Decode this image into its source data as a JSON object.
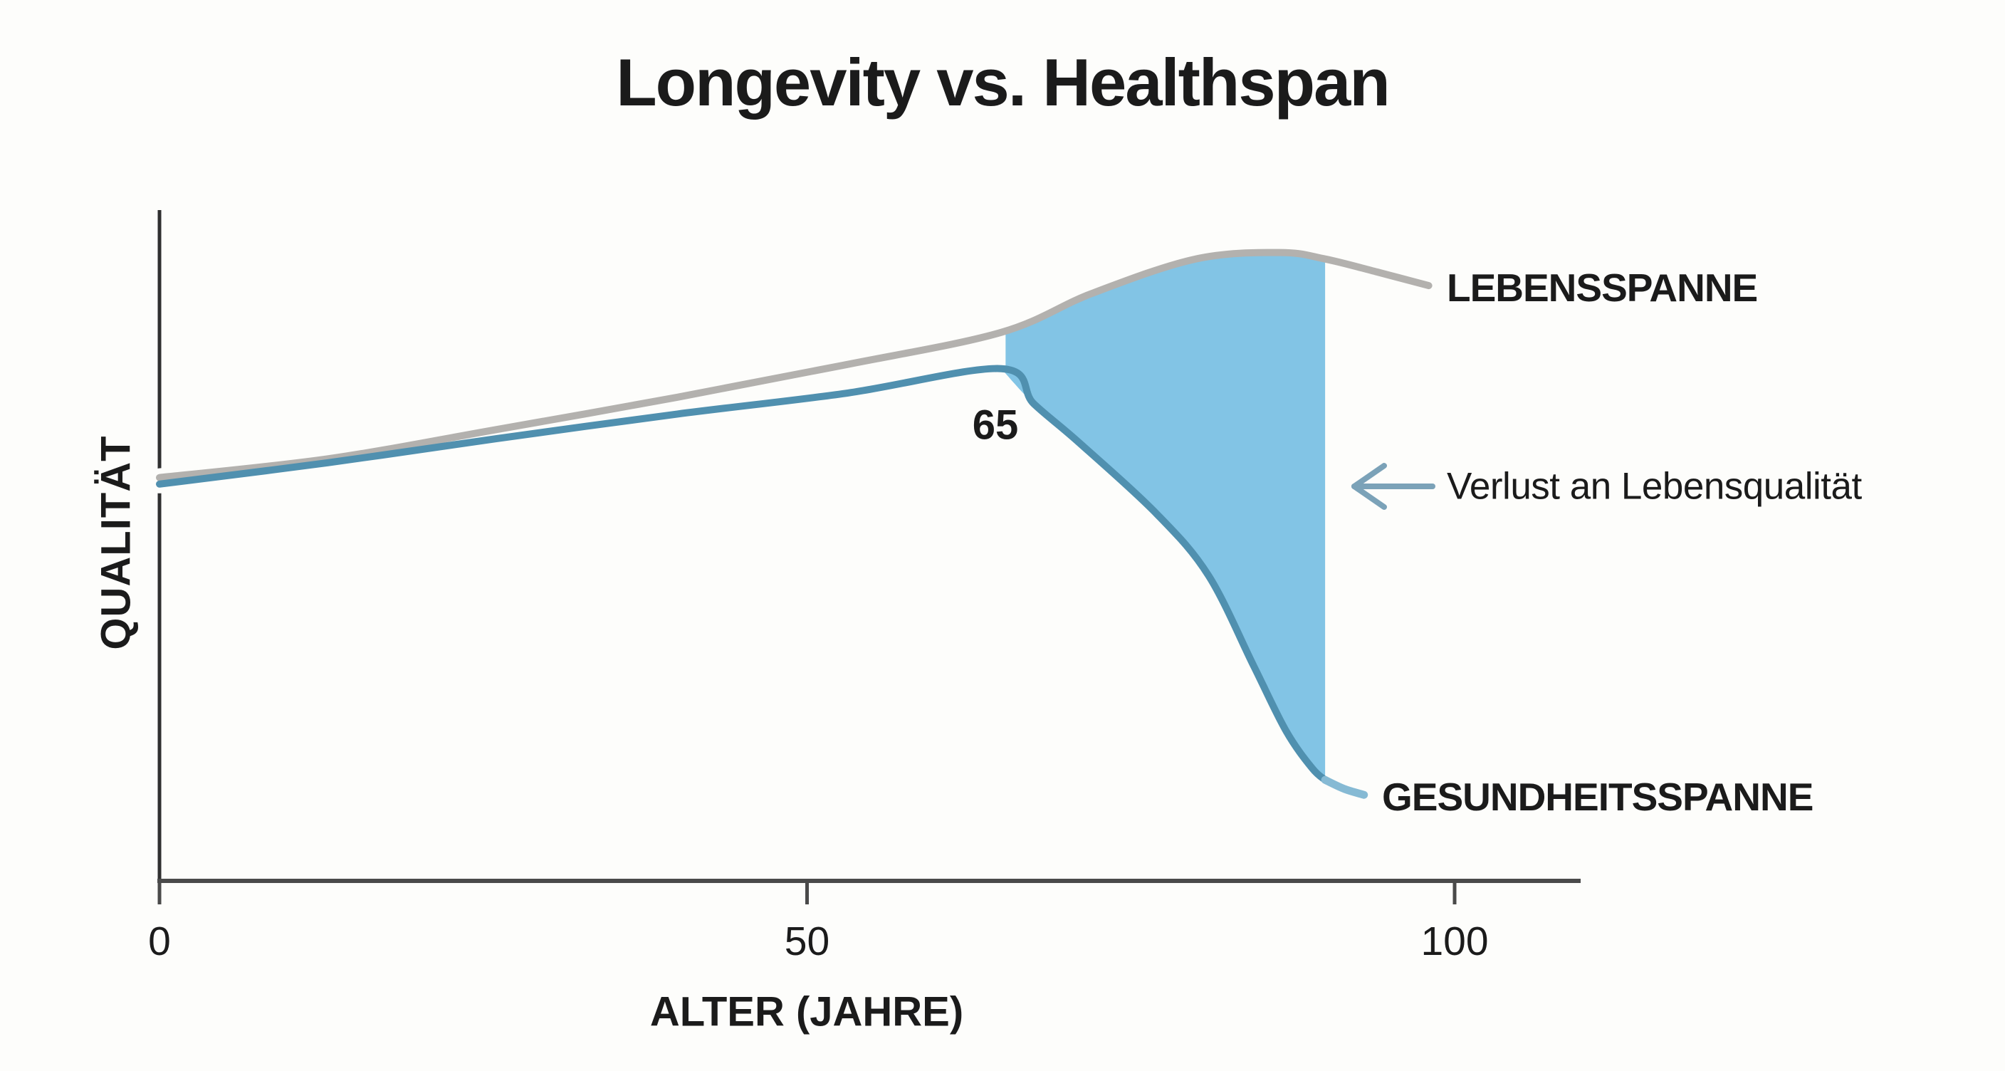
{
  "chart_data": {
    "type": "area",
    "title": "Longevity vs. Healthspan",
    "xlabel": "ALTER (JAHRE)",
    "ylabel": "QUALITÄT",
    "x_ticks": [
      0,
      50,
      100
    ],
    "x_range": [
      0,
      110
    ],
    "y_axis_numeric": false,
    "grid": false,
    "legend_position": "inline-right",
    "series": [
      {
        "name": "LEBENSSPANNE",
        "color": "#b3b1ae",
        "points": [
          [
            0,
            62.6
          ],
          [
            13,
            65.5
          ],
          [
            26,
            70
          ],
          [
            40,
            75
          ],
          [
            53,
            80
          ],
          [
            65,
            85
          ],
          [
            72,
            91
          ],
          [
            80,
            96.3
          ],
          [
            86.5,
            97.3
          ],
          [
            90,
            96.3
          ],
          [
            94,
            94.3
          ],
          [
            98,
            92.2
          ]
        ]
      },
      {
        "name": "GESUNDHEITSSPANNE",
        "color": "#5090af",
        "tail_color": "#86bad4",
        "points": [
          [
            0,
            61.6
          ],
          [
            13,
            64.9
          ],
          [
            26,
            68.6
          ],
          [
            40,
            72.4
          ],
          [
            53,
            75.6
          ],
          [
            65,
            79.4
          ],
          [
            67.5,
            74
          ],
          [
            71,
            68
          ],
          [
            77,
            57
          ],
          [
            81,
            47.5
          ],
          [
            84.5,
            33.5
          ],
          [
            87,
            23.5
          ],
          [
            89,
            17.8
          ],
          [
            90,
            16
          ],
          [
            91.5,
            14.6
          ],
          [
            93,
            13.7
          ]
        ]
      }
    ],
    "shaded_region": {
      "between": [
        "LEBENSSPANNE",
        "GESUNDHEITSSPANNE"
      ],
      "from_age": 65,
      "to_age": 90,
      "color": "#82c4e5",
      "label": "Verlust an Lebensqualität"
    },
    "annotations": {
      "divergence_age": "65",
      "loss_label": "Verlust an Lebensqualität"
    }
  },
  "colors": {
    "axis": "#4a4a4a",
    "y_axis": "#303030",
    "text": "#1b1b1b",
    "arrow": "#7ba2b8",
    "line_casing": "#fdfdfb"
  }
}
